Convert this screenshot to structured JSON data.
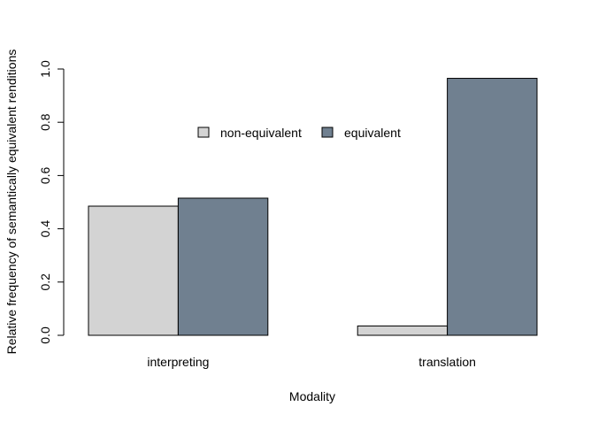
{
  "chart_data": {
    "type": "bar",
    "title": "",
    "xlabel": "Modality",
    "ylabel": "Relative frequency of semantically equivalent renditions",
    "categories": [
      "interpreting",
      "translation"
    ],
    "series": [
      {
        "name": "non-equivalent",
        "color": "#d3d3d3",
        "values": [
          0.485,
          0.035
        ]
      },
      {
        "name": "equivalent",
        "color": "#708090",
        "values": [
          0.515,
          0.965
        ]
      }
    ],
    "ylim": [
      0,
      1.0
    ],
    "yticks": [
      "0.0",
      "0.2",
      "0.4",
      "0.6",
      "0.8",
      "1.0"
    ],
    "ytick_values": [
      0,
      0.2,
      0.4,
      0.6,
      0.8,
      1.0
    ],
    "grid": false,
    "legend_position": "top-center"
  }
}
